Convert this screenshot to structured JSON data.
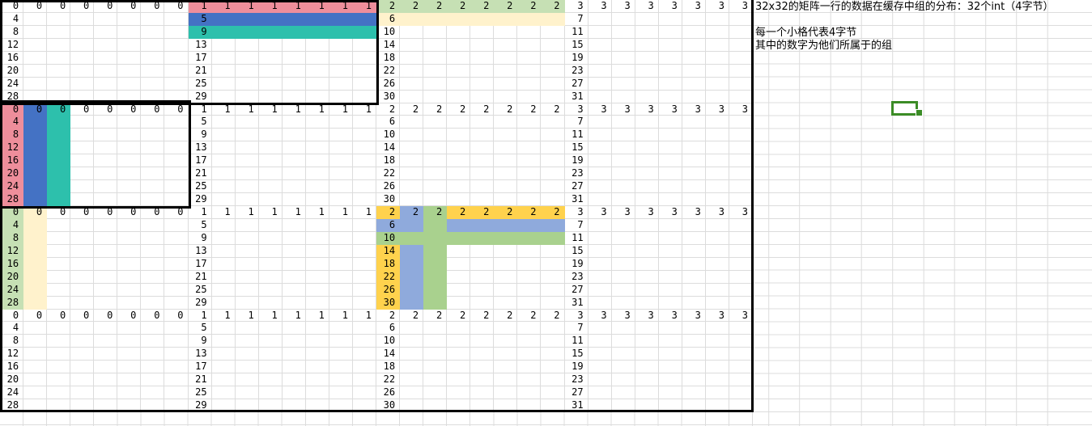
{
  "notes": {
    "line1": "32x32的矩阵一行的数据在缓存中组的分布：32个int（4字节）",
    "line2": "每一个小格代表4字节",
    "line3": "其中的数字为他们所属于的组"
  },
  "colors": {
    "pink": "#EE8E9B",
    "blue": "#4472C4",
    "teal": "#2DC0AC",
    "lightgreen": "#C6E0B4",
    "cream": "#FFF2CC",
    "gold": "#FFD24D",
    "periwinkle": "#8FAADC",
    "green": "#A9D18E",
    "gridline": "#DCDCDC",
    "heavy_border": "#000000",
    "selection_green": "#3B8C26"
  },
  "grid": {
    "bands": 4,
    "blocks_per_band": 4,
    "rows_per_block": 8,
    "cols_per_block": 8,
    "block_groups": [
      0,
      1,
      2,
      3
    ],
    "block_col_labels": [
      [
        0,
        4,
        8,
        12,
        16,
        20,
        24,
        28
      ],
      [
        1,
        5,
        9,
        13,
        17,
        21,
        25,
        29
      ],
      [
        2,
        6,
        10,
        14,
        18,
        22,
        26,
        30
      ],
      [
        3,
        7,
        11,
        15,
        19,
        23,
        27,
        31
      ]
    ]
  },
  "highlights": [
    {
      "band": 0,
      "block": 1,
      "kind": "row",
      "idx": 0,
      "color": "pink"
    },
    {
      "band": 0,
      "block": 1,
      "kind": "row",
      "idx": 1,
      "color": "blue"
    },
    {
      "band": 0,
      "block": 1,
      "kind": "row",
      "idx": 2,
      "color": "teal"
    },
    {
      "band": 0,
      "block": 2,
      "kind": "row",
      "idx": 0,
      "color": "lightgreen"
    },
    {
      "band": 0,
      "block": 2,
      "kind": "row",
      "idx": 1,
      "color": "cream"
    },
    {
      "band": 1,
      "block": 0,
      "kind": "col",
      "idx": 0,
      "color": "pink"
    },
    {
      "band": 1,
      "block": 0,
      "kind": "col",
      "idx": 1,
      "color": "blue"
    },
    {
      "band": 1,
      "block": 0,
      "kind": "col",
      "idx": 2,
      "color": "teal"
    },
    {
      "band": 2,
      "block": 0,
      "kind": "col",
      "idx": 0,
      "color": "lightgreen"
    },
    {
      "band": 2,
      "block": 0,
      "kind": "col",
      "idx": 1,
      "color": "cream"
    },
    {
      "band": 2,
      "block": 2,
      "kind": "row",
      "idx": 0,
      "color": "gold"
    },
    {
      "band": 2,
      "block": 2,
      "kind": "row",
      "idx": 1,
      "color": "periwinkle"
    },
    {
      "band": 2,
      "block": 2,
      "kind": "row",
      "idx": 2,
      "color": "green"
    },
    {
      "band": 2,
      "block": 2,
      "kind": "col",
      "idx": 0,
      "color": "gold",
      "skip_rows": [
        1,
        2
      ]
    },
    {
      "band": 2,
      "block": 2,
      "kind": "col",
      "idx": 1,
      "color": "periwinkle",
      "skip_rows": [
        2
      ]
    },
    {
      "band": 2,
      "block": 2,
      "kind": "col",
      "idx": 2,
      "color": "green"
    }
  ]
}
